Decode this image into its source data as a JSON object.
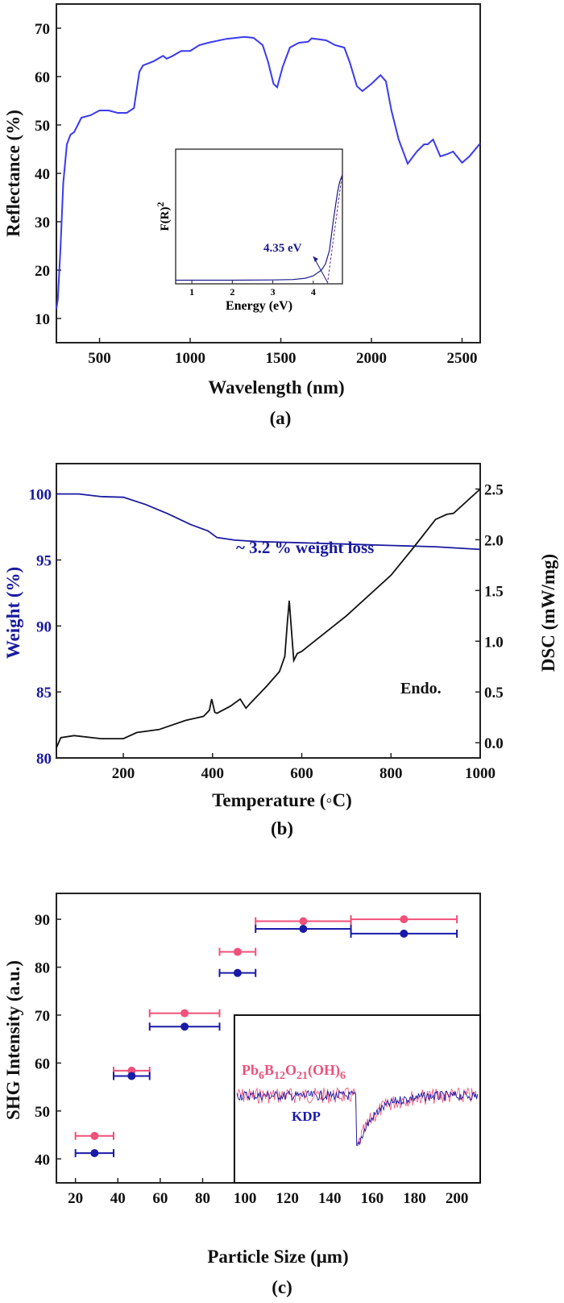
{
  "chart_data": [
    {
      "panel": "(a)",
      "type": "line",
      "xlabel": "Wavelength (nm)",
      "ylabel": "Reflectance (%)",
      "xlim": [
        262,
        2600
      ],
      "ylim": [
        5,
        75
      ],
      "xticks": [
        500,
        1000,
        1500,
        2000,
        2500
      ],
      "yticks": [
        10,
        20,
        30,
        40,
        50,
        60,
        70
      ],
      "grid": false,
      "color": "#3a3af0",
      "series": [
        {
          "x": [
            262,
            270,
            285,
            300,
            320,
            340,
            360,
            380,
            400,
            450,
            500,
            550,
            600,
            650,
            690,
            700,
            720,
            740,
            800,
            850,
            870,
            900,
            950,
            1000,
            1050,
            1100,
            1200,
            1300,
            1350,
            1400,
            1430,
            1460,
            1480,
            1510,
            1550,
            1600,
            1650,
            1670,
            1750,
            1800,
            1850,
            1880,
            1920,
            1950,
            2000,
            2050,
            2080,
            2110,
            2150,
            2200,
            2250,
            2290,
            2310,
            2340,
            2380,
            2420,
            2450,
            2500,
            2540,
            2600
          ],
          "y": [
            12,
            14,
            25,
            38,
            46,
            48,
            48.5,
            50,
            51.5,
            52,
            53,
            53,
            52.5,
            52.5,
            53.5,
            56,
            61,
            62.3,
            63.2,
            64.3,
            63.7,
            64.2,
            65.3,
            65.3,
            66.5,
            67,
            67.8,
            68.2,
            68,
            66.5,
            63,
            58.5,
            57.8,
            62,
            66,
            67,
            67.2,
            67.9,
            67.5,
            66.5,
            66,
            63,
            58,
            57,
            58.5,
            60.3,
            59,
            53,
            47,
            42,
            44.5,
            46,
            46,
            47,
            43.5,
            44,
            44.5,
            42.2,
            43.5,
            46.2
          ]
        }
      ],
      "inset": {
        "xlabel": "Energy (eV)",
        "ylabel": "F(R)",
        "ylabel_sup": "2",
        "xlim": [
          0.6,
          4.72
        ],
        "xticks": [
          1,
          2,
          3,
          4
        ],
        "annotation": "4.35 eV",
        "band_gap_eV": 4.35,
        "curve_color": "#1a1a8c",
        "series": [
          {
            "x": [
              0.6,
              1,
              2,
              3,
              3.5,
              3.8,
              4.0,
              4.2,
              4.3,
              4.4,
              4.5,
              4.6,
              4.65,
              4.72
            ],
            "y": [
              0.01,
              0.01,
              0.01,
              0.012,
              0.015,
              0.025,
              0.045,
              0.09,
              0.14,
              0.25,
              0.5,
              0.72,
              0.8,
              0.86
            ]
          }
        ]
      }
    },
    {
      "panel": "(b)",
      "type": "line",
      "xlabel": "Temperature (◦C)",
      "ylabel_left": "Weight (%)",
      "ylabel_right": "DSC (mW/mg)",
      "xlim": [
        50,
        1000
      ],
      "ylim_left": [
        80,
        102.3
      ],
      "ylim_right": [
        -0.15,
        2.75
      ],
      "xticks": [
        200,
        400,
        600,
        800,
        1000
      ],
      "yticks_left": [
        80,
        85,
        90,
        95,
        100
      ],
      "yticks_right": [
        "0.0",
        "0.5",
        "1.0",
        "1.5",
        "2.0",
        "2.5"
      ],
      "left_axis_color": "#1a1aa0",
      "annotation_weight": "~ 3.2 % weight loss",
      "annotation_dsc": "Endo.",
      "series": [
        {
          "axis": "left",
          "color": "#1a1aa0",
          "x": [
            50,
            100,
            150,
            200,
            250,
            300,
            350,
            390,
            410,
            450,
            500,
            600,
            700,
            800,
            900,
            1000
          ],
          "y": [
            100,
            100,
            99.8,
            99.75,
            99.2,
            98.5,
            97.7,
            97.2,
            96.7,
            96.5,
            96.4,
            96.3,
            96.2,
            96.1,
            96.0,
            95.8
          ]
        },
        {
          "axis": "right",
          "color": "#111111",
          "x": [
            50,
            60,
            90,
            150,
            200,
            230,
            280,
            340,
            380,
            393,
            398,
            405,
            410,
            440,
            462,
            475,
            485,
            520,
            550,
            562,
            568,
            572,
            578,
            582,
            590,
            600,
            700,
            800,
            850,
            900,
            925,
            940,
            1000
          ],
          "y": [
            -0.05,
            0.05,
            0.07,
            0.04,
            0.04,
            0.1,
            0.13,
            0.22,
            0.26,
            0.32,
            0.43,
            0.3,
            0.29,
            0.36,
            0.43,
            0.34,
            0.39,
            0.55,
            0.7,
            0.85,
            1.2,
            1.4,
            1.05,
            0.81,
            0.88,
            0.9,
            1.25,
            1.65,
            1.92,
            2.2,
            2.25,
            2.26,
            2.5
          ]
        }
      ]
    },
    {
      "panel": "(c)",
      "type": "scatter",
      "xlabel": "Particle Size (μm)",
      "ylabel": "SHG Intensity (a.u.)",
      "xlim": [
        11,
        211
      ],
      "ylim": [
        35,
        95.4
      ],
      "xticks": [
        20,
        40,
        60,
        80,
        100,
        120,
        140,
        160,
        180,
        200
      ],
      "yticks": [
        40,
        50,
        60,
        70,
        80,
        90
      ],
      "series": [
        {
          "name": "Pb6B12O21(OH)6",
          "color": "#f0507a",
          "x": [
            29,
            46.5,
            71.5,
            96.5,
            127.5,
            175
          ],
          "y": [
            44.8,
            58.4,
            70.4,
            83.2,
            89.6,
            90
          ],
          "xerr_low": [
            20,
            38,
            55,
            88,
            105,
            150
          ],
          "xerr_high": [
            38,
            55,
            88,
            105,
            150,
            200
          ]
        },
        {
          "name": "KDP",
          "color": "#1a1aa8",
          "x": [
            29,
            46.5,
            71.5,
            96.5,
            127.5,
            175
          ],
          "y": [
            41.2,
            57.3,
            67.6,
            78.8,
            88,
            87
          ],
          "xerr_low": [
            20,
            38,
            55,
            88,
            105,
            150
          ],
          "xerr_high": [
            38,
            55,
            88,
            105,
            150,
            200
          ]
        }
      ],
      "inset": {
        "formula_parts": [
          [
            "Pb",
            ""
          ],
          [
            "6",
            "sub"
          ],
          [
            "B",
            ""
          ],
          [
            "12",
            "sub"
          ],
          [
            "O",
            ""
          ],
          [
            "21",
            "sub"
          ],
          [
            "(OH)",
            ""
          ],
          [
            "6",
            "sub"
          ]
        ],
        "label_kdp": "KDP"
      }
    }
  ]
}
